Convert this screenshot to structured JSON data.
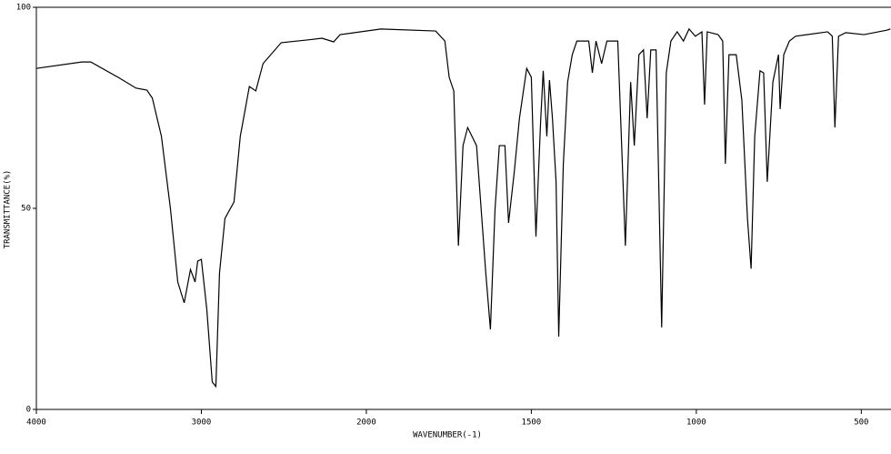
{
  "chart_data": {
    "type": "line",
    "x_label": "WAVENUMBER(-1)",
    "y_label": "TRANSMITTANCE(%)",
    "xlim": [
      4000,
      410
    ],
    "x_scale_break": 2000,
    "xticks": [
      4000,
      3000,
      2000,
      1500,
      1000,
      500
    ],
    "ylim": [
      0,
      100
    ],
    "yticks": [
      0,
      50,
      100
    ],
    "series": [
      {
        "color": "#000000",
        "x": [
          4000,
          3725,
          3670,
          3505,
          3396,
          3330,
          3297,
          3242,
          3187,
          3143,
          3104,
          3066,
          3038,
          3022,
          3000,
          2967,
          2934,
          2912,
          2890,
          2857,
          2802,
          2764,
          2709,
          2670,
          2626,
          2516,
          2352,
          2269,
          2198,
          2159,
          1956,
          1790,
          1762,
          1749,
          1735,
          1721,
          1707,
          1693,
          1666,
          1638,
          1624,
          1610,
          1597,
          1580,
          1569,
          1552,
          1536,
          1514,
          1500,
          1486,
          1472,
          1464,
          1453,
          1445,
          1436,
          1425,
          1417,
          1403,
          1390,
          1376,
          1362,
          1326,
          1315,
          1304,
          1287,
          1271,
          1238,
          1215,
          1199,
          1188,
          1174,
          1160,
          1149,
          1138,
          1122,
          1105,
          1091,
          1077,
          1058,
          1039,
          1022,
          1003,
          983,
          975,
          967,
          934,
          920,
          912,
          901,
          879,
          862,
          845,
          834,
          823,
          807,
          796,
          785,
          768,
          751,
          746,
          735,
          718,
          699,
          602,
          588,
          580,
          569,
          547,
          492,
          423,
          412
        ],
        "values": [
          84.8,
          86.4,
          86.4,
          82.6,
          79.9,
          79.4,
          77.4,
          67.9,
          49.8,
          31.7,
          26.5,
          34.8,
          31.7,
          36.9,
          37.3,
          24.9,
          6.8,
          5.7,
          33.9,
          47.5,
          51.6,
          67.9,
          80.3,
          79.2,
          86.0,
          91.2,
          91.9,
          92.3,
          91.4,
          93.2,
          94.6,
          94.1,
          91.6,
          82.6,
          79.2,
          40.7,
          65.6,
          70.1,
          65.6,
          33.9,
          19.9,
          49.8,
          65.6,
          65.6,
          46.4,
          58.8,
          72.4,
          84.8,
          82.6,
          43.0,
          71.3,
          84.2,
          67.9,
          81.9,
          72.4,
          56.6,
          18.1,
          61.1,
          81.4,
          88.2,
          91.6,
          91.6,
          83.7,
          91.6,
          86.0,
          91.6,
          91.6,
          40.7,
          81.4,
          65.6,
          88.2,
          89.4,
          72.4,
          89.4,
          89.4,
          20.4,
          83.7,
          91.6,
          93.9,
          91.6,
          94.6,
          92.8,
          93.9,
          75.8,
          93.9,
          93.2,
          91.6,
          61.1,
          88.2,
          88.2,
          76.9,
          47.5,
          35.0,
          67.9,
          84.2,
          83.7,
          56.6,
          81.4,
          88.2,
          74.7,
          88.2,
          91.6,
          92.8,
          93.9,
          92.8,
          70.1,
          92.8,
          93.7,
          93.2,
          94.3,
          94.6
        ]
      }
    ]
  }
}
